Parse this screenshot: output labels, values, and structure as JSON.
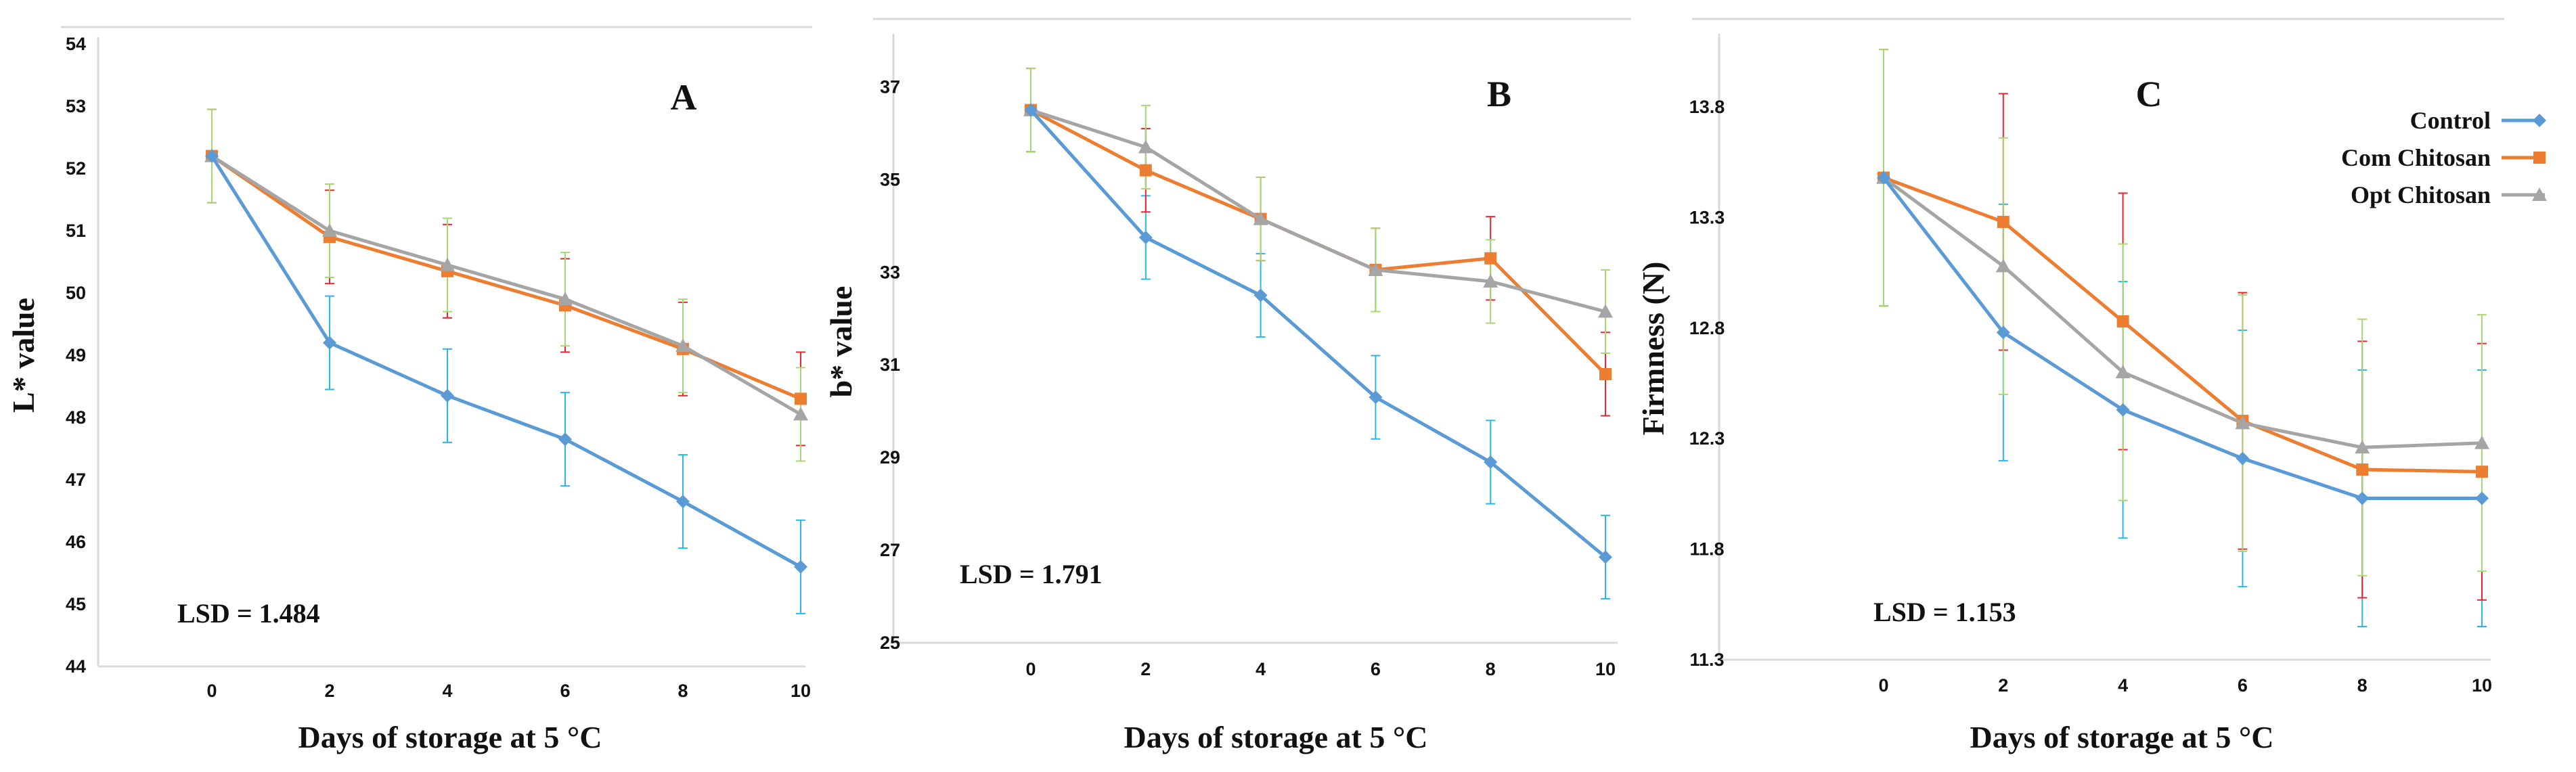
{
  "chart_data": [
    {
      "type": "line",
      "panel_label": "A",
      "xlabel": "Days of storage at 5 °C",
      "ylabel": "L* value",
      "x": [
        0,
        2,
        4,
        6,
        8,
        10
      ],
      "x_tick_labels": [
        "0",
        "2",
        "4",
        "6",
        "8",
        "10"
      ],
      "ylim": [
        44,
        54
      ],
      "y_ticks": [
        44,
        45,
        46,
        47,
        48,
        49,
        50,
        51,
        52,
        53,
        54
      ],
      "annotation": "LSD = 1.484",
      "series": [
        {
          "name": "Control",
          "values": [
            52.2,
            49.2,
            48.35,
            47.65,
            46.65,
            45.6
          ],
          "errors": [
            0.75,
            0.75,
            0.75,
            0.75,
            0.75,
            0.75
          ]
        },
        {
          "name": "Com Chitosan",
          "values": [
            52.2,
            50.9,
            50.35,
            49.8,
            49.1,
            48.3
          ],
          "errors": [
            0.75,
            0.75,
            0.75,
            0.75,
            0.75,
            0.75
          ]
        },
        {
          "name": "Opt Chitosan",
          "values": [
            52.2,
            51.0,
            50.45,
            49.9,
            49.15,
            48.05
          ],
          "errors": [
            0.75,
            0.75,
            0.75,
            0.75,
            0.75,
            0.75
          ]
        }
      ]
    },
    {
      "type": "line",
      "panel_label": "B",
      "xlabel": "Days of storage at 5 °C",
      "ylabel": "b* value",
      "x": [
        0,
        2,
        4,
        6,
        8,
        10
      ],
      "x_tick_labels": [
        "0",
        "2",
        "4",
        "6",
        "8",
        "10"
      ],
      "ylim": [
        25,
        38
      ],
      "y_ticks": [
        25,
        27,
        29,
        31,
        33,
        35,
        37
      ],
      "annotation": "LSD = 1.791",
      "series": [
        {
          "name": "Control",
          "values": [
            36.5,
            33.75,
            32.5,
            30.3,
            28.9,
            26.85
          ],
          "errors": [
            0.9,
            0.9,
            0.9,
            0.9,
            0.9,
            0.9
          ]
        },
        {
          "name": "Com Chitosan",
          "values": [
            36.5,
            35.2,
            34.15,
            33.05,
            33.3,
            30.8
          ],
          "errors": [
            0.9,
            0.9,
            0.9,
            0.9,
            0.9,
            0.9
          ]
        },
        {
          "name": "Opt Chitosan",
          "values": [
            36.5,
            35.7,
            34.15,
            33.05,
            32.8,
            32.15
          ],
          "errors": [
            0.9,
            0.9,
            0.9,
            0.9,
            0.9,
            0.9
          ]
        }
      ]
    },
    {
      "type": "line",
      "panel_label": "C",
      "xlabel": "Days of storage at 5 °C",
      "ylabel": "Firmness (N)",
      "x": [
        0,
        2,
        4,
        6,
        8,
        10
      ],
      "x_tick_labels": [
        "0",
        "2",
        "4",
        "6",
        "8",
        "10"
      ],
      "ylim": [
        11.3,
        14.1
      ],
      "y_ticks": [
        11.3,
        11.8,
        12.3,
        12.8,
        13.3,
        13.8
      ],
      "y_tick_labels": [
        "11.3",
        "11.8",
        "12.3",
        "12.8",
        "13.3",
        "13.8"
      ],
      "annotation": "LSD = 1.153",
      "legend": {
        "position": "top-right",
        "entries": [
          "Control",
          "Com Chitosan",
          "Opt Chitosan"
        ]
      },
      "series": [
        {
          "name": "Control",
          "values": [
            13.48,
            12.78,
            12.43,
            12.21,
            12.03,
            12.03
          ],
          "errors": [
            0.58,
            0.58,
            0.58,
            0.58,
            0.58,
            0.58
          ]
        },
        {
          "name": "Com Chitosan",
          "values": [
            13.48,
            13.28,
            12.83,
            12.38,
            12.16,
            12.15
          ],
          "errors": [
            0.58,
            0.58,
            0.58,
            0.58,
            0.58,
            0.58
          ]
        },
        {
          "name": "Opt Chitosan",
          "values": [
            13.48,
            13.08,
            12.6,
            12.37,
            12.26,
            12.28
          ],
          "errors": [
            0.58,
            0.58,
            0.58,
            0.58,
            0.58,
            0.58
          ]
        }
      ]
    }
  ],
  "colors": {
    "Control": "#5b9bd5",
    "Com Chitosan": "#ed7d31",
    "Opt Chitosan": "#a5a5a5",
    "err_Control": "#29b6e8",
    "err_Com Chitosan": "#e8262e",
    "err_Opt Chitosan": "#a8d672",
    "axis": "#d9d9d9"
  },
  "markers": {
    "Control": "diamond",
    "Com Chitosan": "square",
    "Opt Chitosan": "triangle"
  }
}
